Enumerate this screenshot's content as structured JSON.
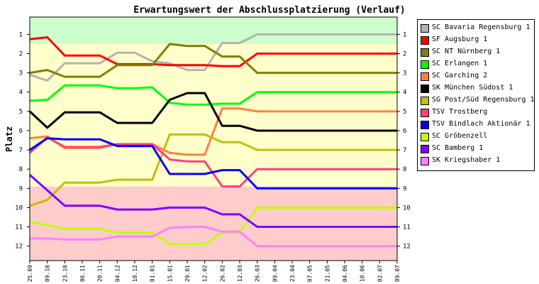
{
  "chart_data": {
    "type": "line",
    "title": "Erwartungswert der Abschlussplatzierung (Verlauf)",
    "ylabel": "Platz",
    "xlabel": "",
    "ylim": [
      12,
      1
    ],
    "y_inverted": true,
    "yticks": [
      1,
      2,
      3,
      4,
      5,
      6,
      7,
      8,
      9,
      10,
      11,
      12
    ],
    "categories": [
      "25.09",
      "09.10",
      "23.10",
      "06.11",
      "20.11",
      "04.12",
      "18.12",
      "01.01",
      "15.01",
      "29.01",
      "12.02",
      "26.02",
      "12.03",
      "26.03",
      "09.04",
      "23.04",
      "07.05",
      "21.05",
      "04.06",
      "18.06",
      "02.07",
      "09.07"
    ],
    "x_positions": [
      0,
      0.5,
      1,
      1.5,
      2,
      2.5,
      3,
      3.5,
      4,
      4.5,
      5,
      5.5,
      6,
      6.5,
      7,
      7.5,
      8,
      8.5,
      9,
      9.5,
      10,
      10.5
    ],
    "background_bands": [
      {
        "from": 0.5,
        "to": 1.5,
        "color": "#ccffcc"
      },
      {
        "from": 1.5,
        "to": 8.9,
        "color": "#ffffcc"
      },
      {
        "from": 8.9,
        "to": 12.5,
        "color": "#ffcccc"
      }
    ],
    "series": [
      {
        "name": "SC Bavaria Regensburg 1",
        "color": "#b3b3b3",
        "x": [
          0,
          0.5,
          1,
          1.5,
          2,
          2.5,
          3,
          3.5,
          4,
          4.5,
          5,
          5.5,
          6,
          6.5,
          7,
          7.5,
          8,
          8.5,
          9,
          9.5,
          10,
          10.5
        ],
        "values": [
          3.1,
          3.4,
          2.5,
          2.5,
          2.5,
          1.95,
          1.95,
          2.4,
          2.5,
          2.85,
          2.85,
          1.45,
          1.45,
          1.0,
          1.0,
          1.0,
          1.0,
          1.0,
          1.0,
          1.0,
          1.0,
          1.0
        ]
      },
      {
        "name": "SF Augsburg 1",
        "color": "#ff0000",
        "x": [
          0,
          0.5,
          1,
          1.5,
          2,
          2.5,
          3,
          3.5,
          4,
          4.5,
          5,
          5.5,
          6,
          6.5,
          7,
          7.5,
          8,
          8.5,
          9,
          9.5,
          10,
          10.5
        ],
        "values": [
          1.25,
          1.15,
          2.1,
          2.1,
          2.1,
          2.55,
          2.55,
          2.55,
          2.6,
          2.6,
          2.6,
          2.65,
          2.65,
          2.0,
          2.0,
          2.0,
          2.0,
          2.0,
          2.0,
          2.0,
          2.0,
          2.0
        ]
      },
      {
        "name": "SC NT Nürnberg 1",
        "color": "#808000",
        "x": [
          0,
          0.5,
          1,
          1.5,
          2,
          2.5,
          3,
          3.5,
          4,
          4.5,
          5,
          5.5,
          6,
          6.5,
          7,
          7.5,
          8,
          8.5,
          9,
          9.5,
          10,
          10.5
        ],
        "values": [
          3.0,
          2.85,
          3.2,
          3.2,
          3.2,
          2.6,
          2.6,
          2.6,
          1.5,
          1.6,
          1.6,
          2.15,
          2.15,
          3.0,
          3.0,
          3.0,
          3.0,
          3.0,
          3.0,
          3.0,
          3.0,
          3.0
        ]
      },
      {
        "name": "SC Erlangen 1",
        "color": "#00ff00",
        "x": [
          0,
          0.5,
          1,
          1.5,
          2,
          2.5,
          3,
          3.5,
          4,
          4.5,
          5,
          5.5,
          6,
          6.5,
          7,
          7.5,
          8,
          8.5,
          9,
          9.5,
          10,
          10.5
        ],
        "values": [
          4.45,
          4.4,
          3.65,
          3.65,
          3.65,
          3.8,
          3.8,
          3.75,
          4.55,
          4.65,
          4.65,
          4.6,
          4.6,
          4.0,
          4.0,
          4.0,
          4.0,
          4.0,
          4.0,
          4.0,
          4.0,
          4.0
        ]
      },
      {
        "name": "SC Garching 2",
        "color": "#ff8040",
        "x": [
          0,
          0.5,
          1,
          1.5,
          2,
          2.5,
          3,
          3.5,
          4,
          4.5,
          5,
          5.5,
          6,
          6.5,
          7,
          7.5,
          8,
          8.5,
          9,
          9.5,
          10,
          10.5
        ],
        "values": [
          6.4,
          6.3,
          6.9,
          6.9,
          6.9,
          6.7,
          6.7,
          6.7,
          7.15,
          7.25,
          7.25,
          4.85,
          4.85,
          5.0,
          5.0,
          5.0,
          5.0,
          5.0,
          5.0,
          5.0,
          5.0,
          5.0
        ]
      },
      {
        "name": "SK München Südost 1",
        "color": "#000000",
        "x": [
          0,
          0.5,
          1,
          1.5,
          2,
          2.5,
          3,
          3.5,
          4,
          4.5,
          5,
          5.5,
          6,
          6.5,
          7,
          7.5,
          8,
          8.5,
          9,
          9.5,
          10,
          10.5
        ],
        "values": [
          5.0,
          5.85,
          5.05,
          5.05,
          5.05,
          5.6,
          5.6,
          5.6,
          4.4,
          4.05,
          4.05,
          5.75,
          5.75,
          6.0,
          6.0,
          6.0,
          6.0,
          6.0,
          6.0,
          6.0,
          6.0,
          6.0
        ]
      },
      {
        "name": "SG Post/Süd Regensburg 1",
        "color": "#c0c000",
        "x": [
          0,
          0.5,
          1,
          1.5,
          2,
          2.5,
          3,
          3.5,
          4,
          4.5,
          5,
          5.5,
          6,
          6.5,
          7,
          7.5,
          8,
          8.5,
          9,
          9.5,
          10,
          10.5
        ],
        "values": [
          9.9,
          9.6,
          8.7,
          8.7,
          8.7,
          8.55,
          8.55,
          8.55,
          6.2,
          6.2,
          6.2,
          6.6,
          6.6,
          7.0,
          7.0,
          7.0,
          7.0,
          7.0,
          7.0,
          7.0,
          7.0,
          7.0
        ]
      },
      {
        "name": "TSV Trostberg",
        "color": "#ff4080",
        "x": [
          0,
          0.5,
          1,
          1.5,
          2,
          2.5,
          3,
          3.5,
          4,
          4.5,
          5,
          5.5,
          6,
          6.5,
          7,
          7.5,
          8,
          8.5,
          9,
          9.5,
          10,
          10.5
        ],
        "values": [
          7.15,
          6.35,
          6.85,
          6.85,
          6.85,
          6.7,
          6.7,
          6.7,
          7.5,
          7.6,
          7.6,
          8.9,
          8.9,
          8.0,
          8.0,
          8.0,
          8.0,
          8.0,
          8.0,
          8.0,
          8.0,
          8.0
        ]
      },
      {
        "name": "TSV Bindlach Aktionär 1",
        "color": "#0000ff",
        "x": [
          0,
          0.5,
          1,
          1.5,
          2,
          2.5,
          3,
          3.5,
          4,
          4.5,
          5,
          5.5,
          6,
          6.5,
          7,
          7.5,
          8,
          8.5,
          9,
          9.5,
          10,
          10.5
        ],
        "values": [
          7.0,
          6.4,
          6.45,
          6.45,
          6.45,
          6.8,
          6.8,
          6.8,
          8.25,
          8.25,
          8.25,
          8.05,
          8.05,
          9.0,
          9.0,
          9.0,
          9.0,
          9.0,
          9.0,
          9.0,
          9.0,
          9.0
        ]
      },
      {
        "name": "SC Gröbenzell",
        "color": "#c0ff00",
        "x": [
          0,
          0.5,
          1,
          1.5,
          2,
          2.5,
          3,
          3.5,
          4,
          4.5,
          5,
          5.5,
          6,
          6.5,
          7,
          7.5,
          8,
          8.5,
          9,
          9.5,
          10,
          10.5
        ],
        "values": [
          10.75,
          10.9,
          11.1,
          11.1,
          11.1,
          11.3,
          11.3,
          11.3,
          11.9,
          11.9,
          11.9,
          11.3,
          11.3,
          10.0,
          10.0,
          10.0,
          10.0,
          10.0,
          10.0,
          10.0,
          10.0,
          10.0
        ]
      },
      {
        "name": "SC Bamberg 1",
        "color": "#8000ff",
        "x": [
          0,
          0.5,
          1,
          1.5,
          2,
          2.5,
          3,
          3.5,
          4,
          4.5,
          5,
          5.5,
          6,
          6.5,
          7,
          7.5,
          8,
          8.5,
          9,
          9.5,
          10,
          10.5
        ],
        "values": [
          8.3,
          9.1,
          9.9,
          9.9,
          9.9,
          10.1,
          10.1,
          10.1,
          10.0,
          10.0,
          10.0,
          10.35,
          10.35,
          11.0,
          11.0,
          11.0,
          11.0,
          11.0,
          11.0,
          11.0,
          11.0,
          11.0
        ]
      },
      {
        "name": "SK Kriegshaber 1",
        "color": "#ff80ff",
        "x": [
          0,
          0.5,
          1,
          1.5,
          2,
          2.5,
          3,
          3.5,
          4,
          4.5,
          5,
          5.5,
          6,
          6.5,
          7,
          7.5,
          8,
          8.5,
          9,
          9.5,
          10,
          10.5
        ],
        "values": [
          11.6,
          11.6,
          11.65,
          11.65,
          11.65,
          11.5,
          11.5,
          11.5,
          11.05,
          11.0,
          11.0,
          11.25,
          11.25,
          12.0,
          12.0,
          12.0,
          12.0,
          12.0,
          12.0,
          12.0,
          12.0,
          12.0
        ]
      }
    ],
    "legend_position": "right",
    "grid": false
  }
}
